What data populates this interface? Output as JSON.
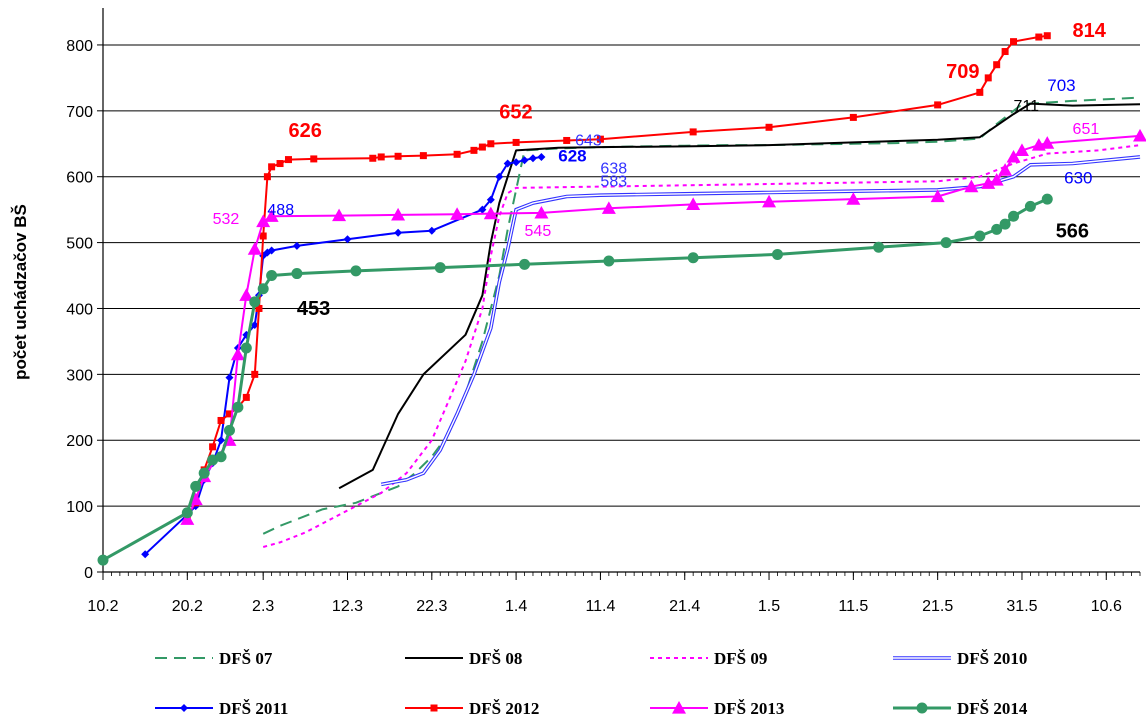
{
  "chart_data": {
    "type": "line",
    "ylabel": "počet uchádzačov BŠ",
    "ylim": [
      0,
      850
    ],
    "yticks": [
      0,
      100,
      200,
      300,
      400,
      500,
      600,
      700,
      800
    ],
    "xlim": [
      0,
      123
    ],
    "xticks": [
      {
        "pos": 0,
        "label": "10.2"
      },
      {
        "pos": 10,
        "label": "20.2"
      },
      {
        "pos": 19,
        "label": "2.3"
      },
      {
        "pos": 29,
        "label": "12.3"
      },
      {
        "pos": 39,
        "label": "22.3"
      },
      {
        "pos": 49,
        "label": "1.4"
      },
      {
        "pos": 59,
        "label": "11.4"
      },
      {
        "pos": 69,
        "label": "21.4"
      },
      {
        "pos": 79,
        "label": "1.5"
      },
      {
        "pos": 89,
        "label": "11.5"
      },
      {
        "pos": 99,
        "label": "21.5"
      },
      {
        "pos": 109,
        "label": "31.5"
      },
      {
        "pos": 119,
        "label": "10.6"
      }
    ],
    "grid": true,
    "legend_position": "bottom",
    "series": [
      {
        "name": "DFŠ 07",
        "color": "#339966",
        "dash": "12,7",
        "width": 2,
        "marker": "none",
        "points": [
          [
            19,
            58
          ],
          [
            21,
            70
          ],
          [
            23,
            80
          ],
          [
            26,
            95
          ],
          [
            28,
            100
          ],
          [
            30,
            105
          ],
          [
            32,
            115
          ],
          [
            35,
            130
          ],
          [
            37,
            150
          ],
          [
            39,
            175
          ],
          [
            41,
            210
          ],
          [
            43,
            270
          ],
          [
            45,
            350
          ],
          [
            47,
            450
          ],
          [
            48,
            520
          ],
          [
            49,
            580
          ],
          [
            50,
            640
          ],
          [
            54,
            643
          ],
          [
            59,
            645
          ],
          [
            64,
            646
          ],
          [
            69,
            647
          ],
          [
            74,
            648
          ],
          [
            79,
            648
          ],
          [
            84,
            649
          ],
          [
            89,
            650
          ],
          [
            94,
            651
          ],
          [
            99,
            653
          ],
          [
            104,
            658
          ],
          [
            106,
            680
          ],
          [
            109,
            710
          ],
          [
            115,
            715
          ],
          [
            123,
            720
          ]
        ]
      },
      {
        "name": "DFŠ 08",
        "color": "#000000",
        "dash": "",
        "width": 2,
        "marker": "none",
        "points": [
          [
            28,
            127
          ],
          [
            32,
            155
          ],
          [
            35,
            240
          ],
          [
            38,
            300
          ],
          [
            43,
            360
          ],
          [
            45,
            420
          ],
          [
            46,
            500
          ],
          [
            47,
            560
          ],
          [
            48,
            600
          ],
          [
            49,
            640
          ],
          [
            54,
            644
          ],
          [
            59,
            645
          ],
          [
            69,
            646
          ],
          [
            79,
            648
          ],
          [
            89,
            652
          ],
          [
            99,
            656
          ],
          [
            104,
            660
          ],
          [
            108,
            695
          ],
          [
            110,
            711
          ],
          [
            115,
            708
          ],
          [
            123,
            710
          ]
        ]
      },
      {
        "name": "DFŠ 09",
        "color": "#ff00ff",
        "dash": "4,4",
        "width": 2,
        "marker": "none",
        "points": [
          [
            19,
            38
          ],
          [
            21,
            45
          ],
          [
            24,
            60
          ],
          [
            27,
            80
          ],
          [
            30,
            100
          ],
          [
            33,
            120
          ],
          [
            36,
            150
          ],
          [
            39,
            200
          ],
          [
            41,
            260
          ],
          [
            43,
            320
          ],
          [
            45,
            400
          ],
          [
            46,
            480
          ],
          [
            47,
            540
          ],
          [
            48,
            575
          ],
          [
            49,
            583
          ],
          [
            59,
            585
          ],
          [
            69,
            587
          ],
          [
            79,
            589
          ],
          [
            89,
            591
          ],
          [
            99,
            593
          ],
          [
            104,
            600
          ],
          [
            108,
            620
          ],
          [
            112,
            635
          ],
          [
            118,
            640
          ],
          [
            123,
            648
          ]
        ]
      },
      {
        "name": "DFŠ 2010",
        "color": "#3333ff",
        "dash": "",
        "width": 1.3,
        "double": true,
        "marker": "none",
        "points": [
          [
            33,
            133
          ],
          [
            36,
            140
          ],
          [
            38,
            150
          ],
          [
            40,
            185
          ],
          [
            42,
            240
          ],
          [
            44,
            300
          ],
          [
            46,
            370
          ],
          [
            47,
            440
          ],
          [
            48,
            490
          ],
          [
            49,
            550
          ],
          [
            51,
            560
          ],
          [
            53,
            565
          ],
          [
            55,
            570
          ],
          [
            59,
            572
          ],
          [
            69,
            574
          ],
          [
            79,
            576
          ],
          [
            89,
            578
          ],
          [
            99,
            580
          ],
          [
            104,
            585
          ],
          [
            108,
            600
          ],
          [
            110,
            618
          ],
          [
            115,
            620
          ],
          [
            123,
            630
          ]
        ]
      },
      {
        "name": "DFŠ 2011",
        "color": "#0000ff",
        "dash": "",
        "width": 2,
        "marker": "diamond",
        "points": [
          [
            5,
            27
          ],
          [
            10,
            87
          ],
          [
            11,
            100
          ],
          [
            12,
            140
          ],
          [
            13,
            165
          ],
          [
            14,
            200
          ],
          [
            15,
            295
          ],
          [
            16,
            340
          ],
          [
            17,
            360
          ],
          [
            18,
            375
          ],
          [
            18.5,
            420
          ],
          [
            19,
            480
          ],
          [
            19.5,
            485
          ],
          [
            20,
            488
          ],
          [
            23,
            495
          ],
          [
            29,
            505
          ],
          [
            35,
            515
          ],
          [
            39,
            518
          ],
          [
            45,
            550
          ],
          [
            46,
            565
          ],
          [
            47,
            600
          ],
          [
            48,
            620
          ],
          [
            49,
            622
          ],
          [
            50,
            625
          ],
          [
            51,
            628
          ],
          [
            52,
            630
          ]
        ]
      },
      {
        "name": "DFŠ 2012",
        "color": "#ff0000",
        "dash": "",
        "width": 2,
        "marker": "square",
        "points": [
          [
            10,
            85
          ],
          [
            11,
            105
          ],
          [
            12,
            155
          ],
          [
            13,
            190
          ],
          [
            14,
            230
          ],
          [
            15,
            240
          ],
          [
            16,
            250
          ],
          [
            17,
            265
          ],
          [
            18,
            300
          ],
          [
            18.5,
            400
          ],
          [
            19,
            510
          ],
          [
            19.5,
            600
          ],
          [
            20,
            615
          ],
          [
            21,
            620
          ],
          [
            22,
            626
          ],
          [
            25,
            627
          ],
          [
            32,
            628
          ],
          [
            33,
            630
          ],
          [
            35,
            631
          ],
          [
            38,
            632
          ],
          [
            42,
            634
          ],
          [
            44,
            640
          ],
          [
            45,
            645
          ],
          [
            46,
            650
          ],
          [
            49,
            652
          ],
          [
            55,
            655
          ],
          [
            59,
            657
          ],
          [
            70,
            668
          ],
          [
            79,
            675
          ],
          [
            89,
            690
          ],
          [
            99,
            709
          ],
          [
            104,
            728
          ],
          [
            105,
            750
          ],
          [
            106,
            770
          ],
          [
            107,
            790
          ],
          [
            108,
            805
          ],
          [
            111,
            812
          ],
          [
            112,
            814
          ]
        ]
      },
      {
        "name": "DFŠ 2013",
        "color": "#ff00ff",
        "dash": "",
        "width": 2,
        "marker": "triangle",
        "points": [
          [
            10,
            80
          ],
          [
            11,
            110
          ],
          [
            12,
            145
          ],
          [
            15,
            200
          ],
          [
            16,
            330
          ],
          [
            17,
            420
          ],
          [
            18,
            490
          ],
          [
            19,
            532
          ],
          [
            20,
            540
          ],
          [
            28,
            541
          ],
          [
            35,
            542
          ],
          [
            42,
            543
          ],
          [
            46,
            544
          ],
          [
            52,
            545
          ],
          [
            60,
            552
          ],
          [
            70,
            558
          ],
          [
            79,
            562
          ],
          [
            89,
            566
          ],
          [
            99,
            570
          ],
          [
            103,
            585
          ],
          [
            105,
            590
          ],
          [
            106,
            595
          ],
          [
            107,
            610
          ],
          [
            108,
            630
          ],
          [
            109,
            640
          ],
          [
            111,
            648
          ],
          [
            112,
            651
          ],
          [
            123,
            662
          ]
        ]
      },
      {
        "name": "DFŠ 2014",
        "color": "#339966",
        "dash": "",
        "width": 3,
        "marker": "circle",
        "points": [
          [
            0,
            18
          ],
          [
            10,
            90
          ],
          [
            11,
            130
          ],
          [
            12,
            150
          ],
          [
            13,
            170
          ],
          [
            14,
            175
          ],
          [
            15,
            215
          ],
          [
            16,
            250
          ],
          [
            17,
            340
          ],
          [
            18,
            410
          ],
          [
            19,
            430
          ],
          [
            20,
            450
          ],
          [
            23,
            453
          ],
          [
            30,
            457
          ],
          [
            40,
            462
          ],
          [
            50,
            467
          ],
          [
            60,
            472
          ],
          [
            70,
            477
          ],
          [
            80,
            482
          ],
          [
            92,
            493
          ],
          [
            100,
            500
          ],
          [
            104,
            510
          ],
          [
            106,
            520
          ],
          [
            107,
            528
          ],
          [
            108,
            540
          ],
          [
            110,
            555
          ],
          [
            112,
            566
          ]
        ]
      }
    ],
    "annotations": [
      {
        "text": "626",
        "x": 22,
        "y": 660,
        "color": "#ff0000",
        "size": 20,
        "bold": true
      },
      {
        "text": "652",
        "x": 47,
        "y": 688,
        "color": "#ff0000",
        "size": 20,
        "bold": true
      },
      {
        "text": "709",
        "x": 100,
        "y": 750,
        "color": "#ff0000",
        "size": 20,
        "bold": true
      },
      {
        "text": "814",
        "x": 115,
        "y": 812,
        "color": "#ff0000",
        "size": 20,
        "bold": true
      },
      {
        "text": "703",
        "x": 112,
        "y": 730,
        "color": "#0000ff",
        "size": 17,
        "bold": false
      },
      {
        "text": "711",
        "x": 108,
        "y": 700,
        "color": "#000000",
        "size": 16,
        "bold": false
      },
      {
        "text": "643",
        "x": 56,
        "y": 647,
        "color": "#3333ff",
        "size": 16,
        "bold": false
      },
      {
        "text": "628",
        "x": 54,
        "y": 623,
        "color": "#0000ff",
        "size": 17,
        "bold": true
      },
      {
        "text": "638",
        "x": 59,
        "y": 605,
        "color": "#3333ff",
        "size": 16,
        "bold": false
      },
      {
        "text": "583",
        "x": 59,
        "y": 585,
        "color": "#3333ff",
        "size": 16,
        "bold": false
      },
      {
        "text": "545",
        "x": 50,
        "y": 510,
        "color": "#ff00ff",
        "size": 16,
        "bold": false
      },
      {
        "text": "651",
        "x": 115,
        "y": 665,
        "color": "#ff00ff",
        "size": 16,
        "bold": false
      },
      {
        "text": "630",
        "x": 114,
        "y": 590,
        "color": "#0000ff",
        "size": 17,
        "bold": false
      },
      {
        "text": "566",
        "x": 113,
        "y": 508,
        "color": "#000000",
        "size": 20,
        "bold": true
      },
      {
        "text": "532",
        "x": 13,
        "y": 528,
        "color": "#ff00ff",
        "size": 16,
        "bold": false
      },
      {
        "text": "488",
        "x": 19.5,
        "y": 542,
        "color": "#0000ff",
        "size": 16,
        "bold": false
      },
      {
        "text": "453",
        "x": 23,
        "y": 390,
        "color": "#000000",
        "size": 20,
        "bold": true
      }
    ]
  }
}
